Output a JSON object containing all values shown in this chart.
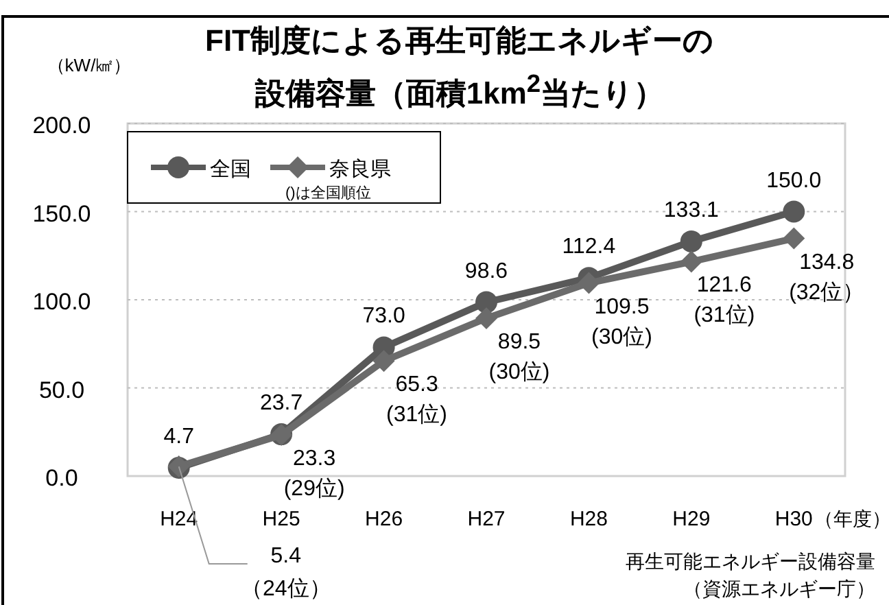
{
  "chart_data": {
    "type": "line",
    "title": "FIT制度による再生可能エネルギーの設備容量（面積1km$^{2}$当たり）",
    "ylabel": "（kW/㎢）",
    "xlabel": "（年度）",
    "categories": [
      "H24",
      "H25",
      "H26",
      "H27",
      "H28",
      "H29",
      "H30"
    ],
    "series": [
      {
        "name": "全国",
        "color": "#595959",
        "marker": "circle",
        "values": [
          4.7,
          23.7,
          73.0,
          98.6,
          112.4,
          133.1,
          150.0
        ],
        "value_labels": [
          "4.7",
          "23.7",
          "73.0",
          "98.6",
          "112.4",
          "133.1",
          "150.0"
        ]
      },
      {
        "name": "奈良県",
        "color": "#6b6b6b",
        "marker": "diamond",
        "values": [
          5.4,
          23.3,
          65.3,
          89.5,
          109.5,
          121.6,
          134.8
        ],
        "value_labels": [
          "5.4\n（24位）",
          "23.3\n(29位)",
          "65.3\n(31位)",
          "89.5\n(30位)",
          "109.5\n(30位)",
          "121.6\n(31位)",
          "134.8\n(32位）"
        ]
      }
    ],
    "ylim": [
      0,
      200
    ],
    "yticks": [
      {
        "value": 0,
        "label": "0.0"
      },
      {
        "value": 50,
        "label": "50.0"
      },
      {
        "value": 100,
        "label": "100.0"
      },
      {
        "value": 150,
        "label": "150.0"
      },
      {
        "value": 200,
        "label": "200.0"
      }
    ],
    "grid": "y",
    "legend": "top left",
    "annotations": [
      "()は全国順位",
      "再生可能エネルギー設備容量",
      "（資源エネルギー庁）"
    ]
  }
}
